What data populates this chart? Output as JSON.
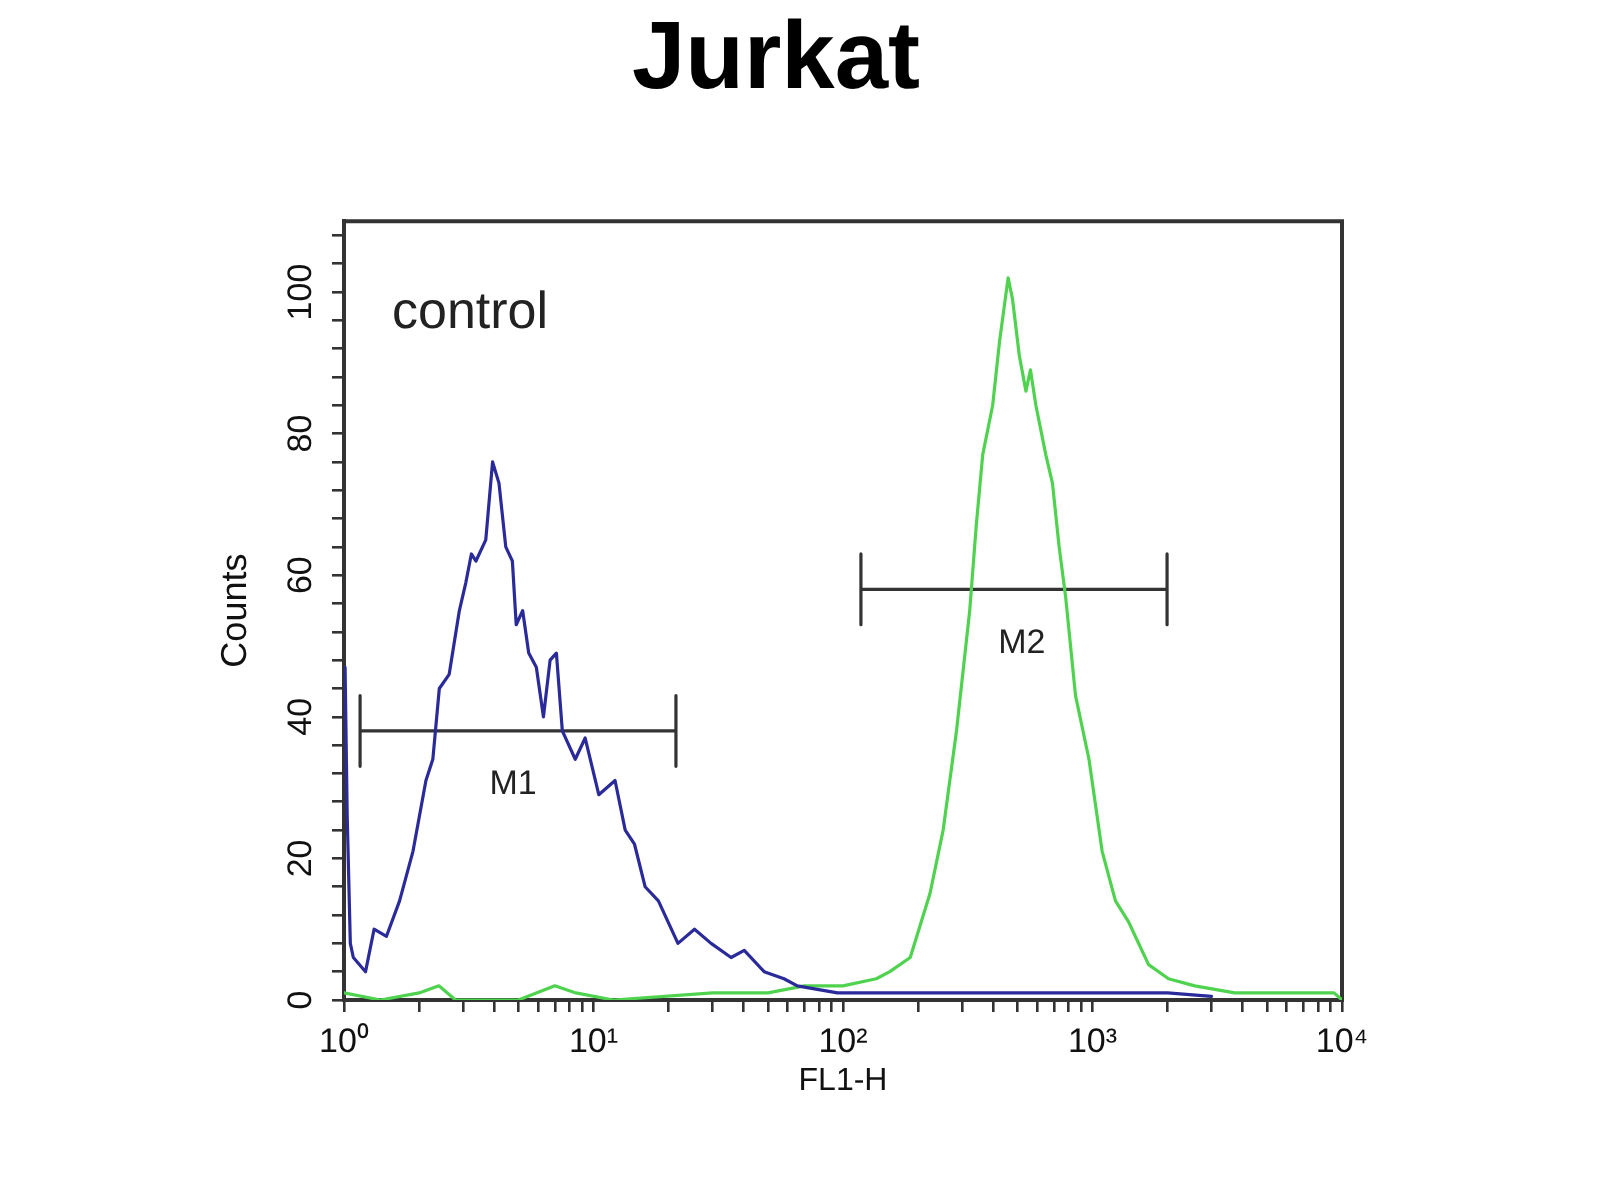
{
  "chart_data": {
    "type": "line",
    "title": "Jurkat",
    "xlabel": "FL1-H",
    "ylabel": "Counts",
    "log": "x",
    "marker": "none",
    "xlim": [
      1,
      10000
    ],
    "ylim": [
      0,
      110
    ],
    "xticks": [
      {
        "value": 1,
        "label": "10⁰"
      },
      {
        "value": 2,
        "label": null
      },
      {
        "value": 3,
        "label": null
      },
      {
        "value": 4,
        "label": null
      },
      {
        "value": 5,
        "label": null
      },
      {
        "value": 6,
        "label": null
      },
      {
        "value": 7,
        "label": null
      },
      {
        "value": 8,
        "label": null
      },
      {
        "value": 9,
        "label": null
      },
      {
        "value": 10,
        "label": "10¹"
      },
      {
        "value": 20,
        "label": null
      },
      {
        "value": 30,
        "label": null
      },
      {
        "value": 40,
        "label": null
      },
      {
        "value": 50,
        "label": null
      },
      {
        "value": 60,
        "label": null
      },
      {
        "value": 70,
        "label": null
      },
      {
        "value": 80,
        "label": null
      },
      {
        "value": 90,
        "label": null
      },
      {
        "value": 100,
        "label": "10²"
      },
      {
        "value": 200,
        "label": null
      },
      {
        "value": 300,
        "label": null
      },
      {
        "value": 400,
        "label": null
      },
      {
        "value": 500,
        "label": null
      },
      {
        "value": 600,
        "label": null
      },
      {
        "value": 700,
        "label": null
      },
      {
        "value": 800,
        "label": null
      },
      {
        "value": 900,
        "label": null
      },
      {
        "value": 1000,
        "label": "10³"
      },
      {
        "value": 2000,
        "label": null
      },
      {
        "value": 3000,
        "label": null
      },
      {
        "value": 4000,
        "label": null
      },
      {
        "value": 5000,
        "label": null
      },
      {
        "value": 6000,
        "label": null
      },
      {
        "value": 7000,
        "label": null
      },
      {
        "value": 8000,
        "label": null
      },
      {
        "value": 9000,
        "label": null
      },
      {
        "value": 10000,
        "label": "10⁴"
      }
    ],
    "yticks": [
      0,
      {
        "value": 4,
        "label": null
      },
      {
        "value": 8,
        "label": null
      },
      {
        "value": 12,
        "label": null
      },
      {
        "value": 16,
        "label": null
      },
      20,
      {
        "value": 24,
        "label": null
      },
      {
        "value": 28,
        "label": null
      },
      {
        "value": 32,
        "label": null
      },
      {
        "value": 36,
        "label": null
      },
      40,
      {
        "value": 44,
        "label": null
      },
      {
        "value": 48,
        "label": null
      },
      {
        "value": 52,
        "label": null
      },
      {
        "value": 56,
        "label": null
      },
      60,
      {
        "value": 64,
        "label": null
      },
      {
        "value": 68,
        "label": null
      },
      {
        "value": 72,
        "label": null
      },
      {
        "value": 76,
        "label": null
      },
      80,
      {
        "value": 84,
        "label": null
      },
      {
        "value": 88,
        "label": null
      },
      {
        "value": 92,
        "label": null
      },
      {
        "value": 96,
        "label": null
      },
      100,
      {
        "value": 104,
        "label": null
      },
      {
        "value": 108,
        "label": null
      }
    ],
    "series": [
      {
        "color": "#2a2a9a",
        "x": [
          1.01,
          1.03,
          1.06,
          1.09,
          1.22,
          1.32,
          1.48,
          1.67,
          1.89,
          2.13,
          2.27,
          2.41,
          2.64,
          2.9,
          3.08,
          3.24,
          3.38,
          3.7,
          3.94,
          4.18,
          4.45,
          4.73,
          4.9,
          5.2,
          5.5,
          5.9,
          6.3,
          6.7,
          7.1,
          7.5,
          8.45,
          9.26,
          10.5,
          12.2,
          13.4,
          14.6,
          16.1,
          18.2,
          21.8,
          25.4,
          29.6,
          35.6,
          40.2,
          48.3,
          58,
          65.6,
          95,
          130,
          200,
          300,
          500,
          1000,
          2000,
          3000
        ],
        "values": [
          47,
          26,
          8,
          6,
          4,
          10,
          9,
          14,
          21,
          31,
          34,
          44,
          46,
          55,
          59,
          63,
          62,
          65,
          76,
          73,
          64,
          62,
          53,
          55,
          49,
          47,
          40,
          48,
          49,
          38,
          34,
          37,
          29,
          31,
          24,
          22,
          16,
          14,
          8,
          10,
          8,
          6,
          7,
          4,
          3,
          2,
          1,
          1,
          1,
          1,
          1,
          1,
          1,
          0.5
        ]
      },
      {
        "color": "#4fd34f",
        "x": [
          1,
          1.4,
          2,
          2.4,
          2.8,
          5,
          7,
          8.5,
          12,
          30,
          50,
          70,
          100,
          136,
          154,
          186,
          223,
          252,
          285,
          322,
          342,
          363,
          398,
          424,
          459,
          478,
          509,
          541,
          564,
          593,
          650,
          691,
          735,
          780,
          855,
          968,
          1093,
          1236,
          1397,
          1484,
          1678,
          2016,
          2570,
          3715,
          6440,
          9290,
          10000
        ],
        "values": [
          1,
          0,
          1,
          2,
          0,
          0,
          2,
          1,
          0,
          1,
          1,
          2,
          2,
          3,
          4,
          6,
          15,
          24,
          38,
          55,
          67,
          77,
          84,
          93,
          102,
          99,
          91,
          86,
          89,
          84,
          77,
          73,
          64,
          57,
          43,
          34,
          21,
          14,
          11,
          9,
          5,
          3,
          2,
          1,
          1,
          1,
          0
        ]
      },
      {
        "color": "#333333",
        "x": [
          1.16,
          1.16,
          1.16,
          21.4,
          21.4,
          21.4
        ],
        "values": [
          33,
          43,
          38,
          38,
          43,
          33
        ]
      },
      {
        "color": "#333333",
        "x": [
          118,
          118,
          118,
          1990,
          1990,
          1990
        ],
        "values": [
          53,
          63,
          58,
          58,
          63,
          53
        ]
      }
    ],
    "annotations": [
      "control",
      {
        "text": "M1",
        "x": 4.76,
        "y": 38
      },
      {
        "text": "M2",
        "x": 521,
        "y": 58
      }
    ]
  }
}
